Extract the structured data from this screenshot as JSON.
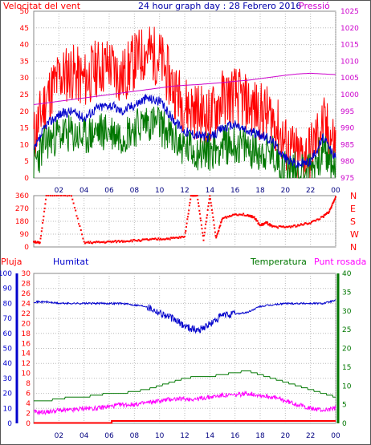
{
  "header": {
    "title": "24 hour graph day : 28 Febrero 2016",
    "wind_label": "Velocitat del vent",
    "pressure_label": "Pressió"
  },
  "colors": {
    "wind_gust": "#ff0000",
    "wind_avg": "#0000cc",
    "wind_speed": "#007700",
    "pressure": "#cc00cc",
    "direction": "#ff0000",
    "rain": "#ff0000",
    "humidity": "#0000cc",
    "temperature": "#007700",
    "dewpoint": "#ff00ff",
    "grid": "#bbbbbb"
  },
  "chart_data": [
    {
      "type": "line",
      "title": "24 hour graph day : 28 Febrero 2016",
      "x_ticks": [
        "02",
        "04",
        "06",
        "08",
        "10",
        "12",
        "14",
        "16",
        "18",
        "20",
        "22",
        "00"
      ],
      "y_left": {
        "label": "Velocitat del vent",
        "ticks": [
          0,
          5,
          10,
          15,
          20,
          25,
          30,
          35,
          40,
          45,
          50
        ],
        "range": [
          0,
          50
        ]
      },
      "y_right": {
        "label": "Pressió",
        "ticks": [
          975,
          980,
          985,
          990,
          995,
          1000,
          1005,
          1010,
          1015,
          1020,
          1025
        ],
        "range": [
          975,
          1025
        ]
      },
      "series": [
        {
          "axis": "left",
          "hours": [
            0,
            1,
            2,
            3,
            4,
            5,
            6,
            7,
            8,
            9,
            10,
            11,
            12,
            13,
            14,
            15,
            16,
            17,
            18,
            19,
            20,
            21,
            22,
            23,
            24
          ],
          "values": [
            12,
            24,
            30,
            32,
            29,
            33,
            34,
            30,
            35,
            38,
            36,
            28,
            22,
            20,
            18,
            24,
            25,
            22,
            20,
            18,
            10,
            6,
            8,
            16,
            10
          ]
        },
        {
          "axis": "left",
          "hours": [
            0,
            1,
            2,
            3,
            4,
            5,
            6,
            7,
            8,
            9,
            10,
            11,
            12,
            13,
            14,
            15,
            16,
            17,
            18,
            19,
            20,
            21,
            22,
            23,
            24
          ],
          "values": [
            8,
            16,
            19,
            20,
            18,
            21,
            22,
            20,
            22,
            24,
            23,
            18,
            14,
            13,
            12,
            15,
            16,
            14,
            13,
            11,
            6,
            4,
            5,
            12,
            6
          ]
        },
        {
          "axis": "left",
          "hours": [
            0,
            1,
            2,
            3,
            4,
            5,
            6,
            7,
            8,
            9,
            10,
            11,
            12,
            13,
            14,
            15,
            16,
            17,
            18,
            19,
            20,
            21,
            22,
            23,
            24
          ],
          "values": [
            4,
            11,
            13,
            13,
            12,
            14,
            14,
            13,
            15,
            17,
            16,
            12,
            9,
            8,
            8,
            10,
            10,
            9,
            8,
            7,
            3,
            2,
            3,
            8,
            3
          ]
        },
        {
          "axis": "right",
          "hours": [
            0,
            1,
            2,
            3,
            4,
            5,
            6,
            7,
            8,
            9,
            10,
            11,
            12,
            13,
            14,
            15,
            16,
            17,
            18,
            19,
            20,
            21,
            22,
            23,
            24
          ],
          "values": [
            997,
            997.5,
            998,
            998.5,
            999,
            999.5,
            1000,
            1000.5,
            1001,
            1001.5,
            1002,
            1002.5,
            1002.8,
            1003,
            1003.3,
            1003.6,
            1004,
            1004.3,
            1004.8,
            1005.3,
            1005.8,
            1006.2,
            1006.4,
            1006.2,
            1006
          ]
        }
      ]
    },
    {
      "type": "scatter",
      "x_ticks": [
        "02",
        "04",
        "06",
        "08",
        "10",
        "12",
        "14",
        "16",
        "18",
        "20",
        "22",
        "00"
      ],
      "y_left": {
        "ticks": [
          0,
          90,
          180,
          270,
          360
        ],
        "range": [
          0,
          360
        ]
      },
      "y_right": {
        "ticks": [
          "N",
          "W",
          "S",
          "E",
          "N"
        ]
      },
      "series": [
        {
          "hours": [
            0,
            0.5,
            1,
            3,
            4,
            5,
            6,
            7,
            8,
            9,
            10,
            11,
            12,
            12.5,
            13,
            13.5,
            14,
            14.5,
            15,
            16,
            17,
            17.5,
            18,
            18.5,
            19,
            20,
            21,
            22,
            23,
            23.5,
            24
          ],
          "values": [
            40,
            25,
            360,
            360,
            30,
            32,
            35,
            40,
            45,
            50,
            55,
            60,
            70,
            360,
            360,
            50,
            360,
            60,
            200,
            230,
            225,
            210,
            150,
            170,
            140,
            140,
            150,
            170,
            210,
            250,
            350
          ]
        }
      ]
    },
    {
      "type": "line",
      "x_ticks": [
        "02",
        "04",
        "06",
        "08",
        "10",
        "12",
        "14",
        "16",
        "18",
        "20",
        "22",
        "00"
      ],
      "y_left_blue": {
        "label": "Humitat",
        "ticks": [
          0,
          10,
          20,
          30,
          40,
          50,
          60,
          70,
          80,
          90,
          100
        ],
        "range": [
          0,
          100
        ]
      },
      "y_left_red": {
        "label": "Pluja",
        "ticks": [
          0,
          2,
          4,
          6,
          8,
          10,
          12,
          14,
          16,
          18,
          20,
          22,
          24,
          26,
          28,
          30
        ],
        "range": [
          0,
          30
        ]
      },
      "y_right": {
        "label": "Temperatura",
        "ticks": [
          0,
          5,
          10,
          15,
          20,
          25,
          30,
          35,
          40
        ],
        "range": [
          0,
          40
        ]
      },
      "legend": [
        "Temperatura",
        "Punt rosada"
      ],
      "series": [
        {
          "axis": "humidity",
          "hours": [
            0,
            1,
            2,
            3,
            4,
            5,
            6,
            7,
            8,
            9,
            10,
            11,
            12,
            13,
            14,
            15,
            16,
            17,
            18,
            19,
            20,
            21,
            22,
            23,
            24
          ],
          "values": [
            81,
            81,
            80,
            80,
            80,
            80,
            80,
            80,
            79,
            78,
            74,
            70,
            65,
            62,
            66,
            72,
            73,
            74,
            78,
            79,
            80,
            80,
            80,
            80,
            82
          ]
        },
        {
          "axis": "temperature",
          "hours": [
            0,
            1,
            2,
            3,
            4,
            5,
            6,
            7,
            8,
            9,
            10,
            11,
            12,
            13,
            14,
            15,
            16,
            17,
            18,
            19,
            20,
            21,
            22,
            23,
            24
          ],
          "values": [
            6,
            6,
            6.5,
            7,
            7,
            7.5,
            8,
            8,
            8.5,
            9,
            10,
            11,
            12,
            12.5,
            12.5,
            13,
            13.5,
            14,
            13,
            12,
            11,
            10,
            9,
            8,
            7
          ]
        },
        {
          "axis": "temperature",
          "hours": [
            0,
            1,
            2,
            3,
            4,
            5,
            6,
            7,
            8,
            9,
            10,
            11,
            12,
            13,
            14,
            15,
            16,
            17,
            18,
            19,
            20,
            21,
            22,
            23,
            24
          ],
          "values": [
            3,
            3,
            3.5,
            3.5,
            4,
            4,
            4.5,
            5,
            5,
            5.5,
            6,
            6.5,
            6.5,
            6.5,
            7,
            7.5,
            7.5,
            8,
            7.5,
            7,
            6,
            5,
            4,
            3.5,
            4
          ]
        },
        {
          "axis": "rain",
          "hours": [
            0,
            6.2,
            6.2,
            24
          ],
          "values": [
            0,
            0,
            0.4,
            0.4
          ]
        }
      ]
    }
  ]
}
